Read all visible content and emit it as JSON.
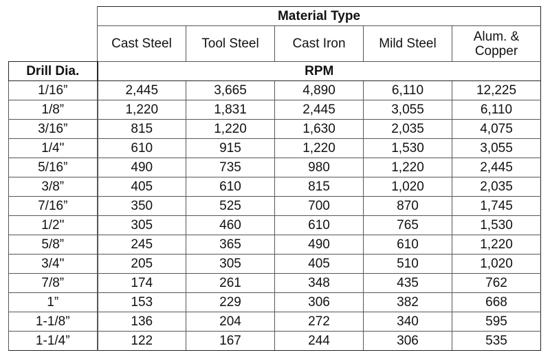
{
  "table": {
    "group_header": "Material Type",
    "row_header": "Drill Dia.",
    "unit_header": "RPM",
    "materials": [
      "Cast Steel",
      "Tool Steel",
      "Cast Iron",
      "Mild Steel",
      "Alum. & Copper"
    ],
    "rows": [
      {
        "dia": "1/16”",
        "values": [
          "2,445",
          "3,665",
          "4,890",
          "6,110",
          "12,225"
        ]
      },
      {
        "dia": "1/8”",
        "values": [
          "1,220",
          "1,831",
          "2,445",
          "3,055",
          "6,110"
        ]
      },
      {
        "dia": "3/16”",
        "values": [
          "815",
          "1,220",
          "1,630",
          "2,035",
          "4,075"
        ]
      },
      {
        "dia": "1/4\"",
        "values": [
          "610",
          "915",
          "1,220",
          "1,530",
          "3,055"
        ]
      },
      {
        "dia": "5/16”",
        "values": [
          "490",
          "735",
          "980",
          "1,220",
          "2,445"
        ]
      },
      {
        "dia": "3/8”",
        "values": [
          "405",
          "610",
          "815",
          "1,020",
          "2,035"
        ]
      },
      {
        "dia": "7/16”",
        "values": [
          "350",
          "525",
          "700",
          "870",
          "1,745"
        ]
      },
      {
        "dia": "1/2\"",
        "values": [
          "305",
          "460",
          "610",
          "765",
          "1,530"
        ]
      },
      {
        "dia": "5/8”",
        "values": [
          "245",
          "365",
          "490",
          "610",
          "1,220"
        ]
      },
      {
        "dia": "3/4\"",
        "values": [
          "205",
          "305",
          "405",
          "510",
          "1,020"
        ]
      },
      {
        "dia": "7/8”",
        "values": [
          "174",
          "261",
          "348",
          "435",
          "762"
        ]
      },
      {
        "dia": "1”",
        "values": [
          "153",
          "229",
          "306",
          "382",
          "668"
        ]
      },
      {
        "dia": "1-1/8”",
        "values": [
          "136",
          "204",
          "272",
          "340",
          "595"
        ]
      },
      {
        "dia": "1-1/4”",
        "values": [
          "122",
          "167",
          "244",
          "306",
          "535"
        ]
      }
    ]
  }
}
